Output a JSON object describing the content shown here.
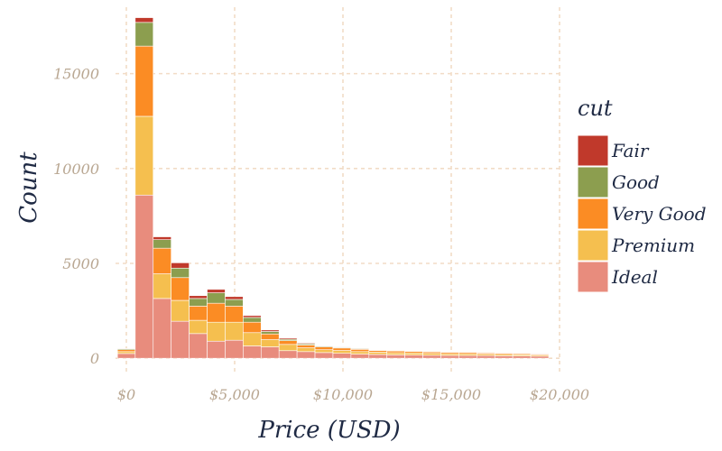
{
  "chart_data": {
    "type": "bar",
    "stacked": true,
    "xlabel": "Price (USD)",
    "ylabel": "Count",
    "xlim": [
      -500,
      20000
    ],
    "ylim": [
      -800,
      18500
    ],
    "x_ticks": [
      0,
      5000,
      10000,
      15000,
      20000
    ],
    "x_tick_labels": [
      "$0",
      "$5,000",
      "$10,000",
      "$15,000",
      "$20,000"
    ],
    "y_ticks": [
      0,
      5000,
      10000,
      15000
    ],
    "y_tick_labels": [
      "0",
      "5000",
      "10000",
      "15000"
    ],
    "grid": true,
    "legend": {
      "title": "cut",
      "placement": "right"
    },
    "bins": [
      [
        -410,
        410
      ],
      [
        410,
        1240
      ],
      [
        1240,
        2070
      ],
      [
        2070,
        2900
      ],
      [
        2900,
        3730
      ],
      [
        3730,
        4560
      ],
      [
        4560,
        5390
      ],
      [
        5390,
        6220
      ],
      [
        6220,
        7050
      ],
      [
        7050,
        7880
      ],
      [
        7880,
        8710
      ],
      [
        8710,
        9540
      ],
      [
        9540,
        10370
      ],
      [
        10370,
        11200
      ],
      [
        11200,
        12030
      ],
      [
        12030,
        12860
      ],
      [
        12860,
        13690
      ],
      [
        13690,
        14520
      ],
      [
        14520,
        15350
      ],
      [
        15350,
        16180
      ],
      [
        16180,
        17010
      ],
      [
        17010,
        17840
      ],
      [
        17840,
        18670
      ],
      [
        18670,
        19500
      ]
    ],
    "series": [
      {
        "name": "Ideal",
        "color": "#e88c7d",
        "values": [
          250,
          8600,
          3150,
          1950,
          1300,
          900,
          950,
          650,
          600,
          400,
          350,
          300,
          260,
          220,
          200,
          180,
          170,
          160,
          150,
          145,
          140,
          130,
          120,
          110
        ]
      },
      {
        "name": "Premium",
        "color": "#f5bf4f",
        "values": [
          100,
          4150,
          1300,
          1100,
          700,
          1000,
          950,
          700,
          380,
          330,
          200,
          150,
          150,
          130,
          120,
          110,
          110,
          100,
          90,
          90,
          80,
          80,
          70,
          60
        ]
      },
      {
        "name": "Very Good",
        "color": "#fb8c24",
        "values": [
          100,
          3700,
          1350,
          1200,
          750,
          1000,
          850,
          550,
          300,
          200,
          150,
          150,
          130,
          120,
          90,
          90,
          80,
          80,
          70,
          70,
          60,
          60,
          55,
          50
        ]
      },
      {
        "name": "Good",
        "color": "#8c9e4f",
        "values": [
          50,
          1250,
          450,
          500,
          400,
          550,
          350,
          250,
          130,
          70,
          60,
          40,
          40,
          40,
          30,
          30,
          30,
          30,
          25,
          25,
          20,
          20,
          20,
          20
        ]
      },
      {
        "name": "Fair",
        "color": "#c0392b",
        "values": [
          10,
          250,
          150,
          280,
          150,
          180,
          150,
          100,
          80,
          60,
          40,
          30,
          30,
          30,
          20,
          20,
          20,
          20,
          15,
          15,
          15,
          15,
          15,
          10
        ]
      }
    ]
  }
}
